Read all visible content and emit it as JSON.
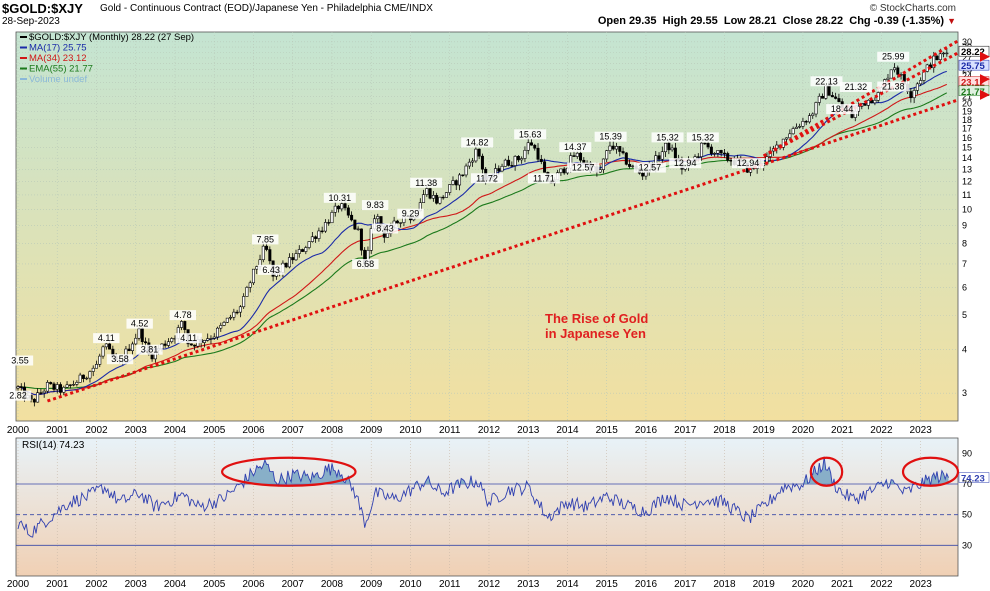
{
  "header": {
    "symbol": "$GOLD:$XJY",
    "description": "Gold - Continuous Contract (EOD)/Japanese Yen - Philadelphia  CME/INDX",
    "date": "28-Sep-2023",
    "credit": "© StockCharts.com",
    "quote": {
      "open_label": "Open",
      "open": "29.35",
      "high_label": "High",
      "high": "29.55",
      "low_label": "Low",
      "low": "28.21",
      "close_label": "Close",
      "close": "28.22",
      "chg_label": "Chg",
      "chg": "-0.39 (-1.35%)"
    }
  },
  "colors": {
    "price": "#000000",
    "ma17": "#1a2aa8",
    "ma34": "#d01818",
    "ema55": "#1c7a1c",
    "volume": "#8ab8d8",
    "rsi_line": "#3040b0",
    "rsi_fill": "#6fa0c0",
    "trendline": "#e01010",
    "annotation": "#e02020",
    "bg_top": "#c4e4d2",
    "bg_bottom": "#f2e0a0",
    "rsi_bg_top": "#e8f2f8",
    "rsi_bg_bottom": "#f0d0b4"
  },
  "chart_data": [
    {
      "type": "candlestick",
      "title": "The Rise of Gold in Japanese Yen",
      "scale": "log",
      "ylim": [
        2.5,
        32
      ],
      "xlim": [
        2000,
        2023.9
      ],
      "grid": true,
      "y_ticks": [
        3,
        4,
        5,
        6,
        7,
        8,
        9,
        10,
        11,
        12,
        13,
        14,
        15,
        16,
        17,
        18,
        19,
        20,
        21,
        22,
        23,
        24,
        25,
        26,
        27,
        28,
        29,
        30
      ],
      "x_ticks": [
        "2000",
        "2001",
        "2002",
        "2003",
        "2004",
        "2005",
        "2006",
        "2007",
        "2008",
        "2009",
        "2010",
        "2011",
        "2012",
        "2013",
        "2014",
        "2015",
        "2016",
        "2017",
        "2018",
        "2019",
        "2020",
        "2021",
        "2022",
        "2023"
      ],
      "legend": [
        {
          "label": "$GOLD:$XJY (Monthly) 28.22 (27 Sep)",
          "color": "#000000"
        },
        {
          "label": "MA(17) 25.75",
          "color": "#1a2aa8"
        },
        {
          "label": "MA(34) 23.12",
          "color": "#d01818"
        },
        {
          "label": "EMA(55) 21.77",
          "color": "#1c7a1c"
        },
        {
          "label": "Volume undef",
          "color": "#8ab8d8"
        }
      ],
      "legend_position": "top-left",
      "price_anchors": [
        {
          "t": 2000.0,
          "v": 3.1
        },
        {
          "t": 2000.35,
          "v": 2.82
        },
        {
          "t": 2000.75,
          "v": 3.15
        },
        {
          "t": 2001.15,
          "v": 3.05
        },
        {
          "t": 2001.6,
          "v": 3.3
        },
        {
          "t": 2002.0,
          "v": 3.6
        },
        {
          "t": 2002.2,
          "v": 4.11
        },
        {
          "t": 2002.55,
          "v": 3.58
        },
        {
          "t": 2003.1,
          "v": 4.52
        },
        {
          "t": 2003.35,
          "v": 3.81
        },
        {
          "t": 2004.0,
          "v": 4.4
        },
        {
          "t": 2004.2,
          "v": 4.78
        },
        {
          "t": 2004.35,
          "v": 4.11
        },
        {
          "t": 2005.0,
          "v": 4.4
        },
        {
          "t": 2005.7,
          "v": 5.3
        },
        {
          "t": 2006.3,
          "v": 7.85
        },
        {
          "t": 2006.5,
          "v": 6.43
        },
        {
          "t": 2007.2,
          "v": 7.6
        },
        {
          "t": 2007.8,
          "v": 9.0
        },
        {
          "t": 2008.2,
          "v": 10.31
        },
        {
          "t": 2008.7,
          "v": 8.5
        },
        {
          "t": 2008.85,
          "v": 6.68
        },
        {
          "t": 2009.1,
          "v": 9.83
        },
        {
          "t": 2009.35,
          "v": 8.43
        },
        {
          "t": 2009.9,
          "v": 9.8
        },
        {
          "t": 2010.0,
          "v": 9.29
        },
        {
          "t": 2010.4,
          "v": 11.38
        },
        {
          "t": 2010.7,
          "v": 10.5
        },
        {
          "t": 2011.3,
          "v": 12.5
        },
        {
          "t": 2011.7,
          "v": 14.82
        },
        {
          "t": 2011.95,
          "v": 11.72
        },
        {
          "t": 2012.3,
          "v": 13.4
        },
        {
          "t": 2012.8,
          "v": 14.0
        },
        {
          "t": 2013.05,
          "v": 15.63
        },
        {
          "t": 2013.25,
          "v": 14.3
        },
        {
          "t": 2013.5,
          "v": 11.71
        },
        {
          "t": 2013.9,
          "v": 13.0
        },
        {
          "t": 2014.2,
          "v": 14.37
        },
        {
          "t": 2014.8,
          "v": 12.57
        },
        {
          "t": 2015.1,
          "v": 15.39
        },
        {
          "t": 2015.6,
          "v": 13.3
        },
        {
          "t": 2015.9,
          "v": 12.57
        },
        {
          "t": 2016.3,
          "v": 14.0
        },
        {
          "t": 2016.55,
          "v": 15.32
        },
        {
          "t": 2016.95,
          "v": 12.94
        },
        {
          "t": 2017.3,
          "v": 14.2
        },
        {
          "t": 2017.45,
          "v": 15.32
        },
        {
          "t": 2017.9,
          "v": 14.2
        },
        {
          "t": 2018.35,
          "v": 13.6
        },
        {
          "t": 2018.65,
          "v": 12.94
        },
        {
          "t": 2019.1,
          "v": 14.0
        },
        {
          "t": 2019.7,
          "v": 16.8
        },
        {
          "t": 2020.2,
          "v": 18.5
        },
        {
          "t": 2020.6,
          "v": 22.13
        },
        {
          "t": 2021.0,
          "v": 19.5
        },
        {
          "t": 2021.25,
          "v": 18.44
        },
        {
          "t": 2021.5,
          "v": 20.0
        },
        {
          "t": 2021.95,
          "v": 21.32
        },
        {
          "t": 2022.3,
          "v": 25.99
        },
        {
          "t": 2022.55,
          "v": 23.2
        },
        {
          "t": 2022.75,
          "v": 21.38
        },
        {
          "t": 2023.3,
          "v": 26.5
        },
        {
          "t": 2023.73,
          "v": 28.22
        }
      ],
      "labels": [
        {
          "t": 2000.05,
          "v": 3.55,
          "text": "3.55"
        },
        {
          "t": 2000.0,
          "v": 2.82,
          "text": "2.82"
        },
        {
          "t": 2002.25,
          "v": 4.11,
          "text": "4.11"
        },
        {
          "t": 2002.6,
          "v": 3.58,
          "text": "3.58"
        },
        {
          "t": 2003.1,
          "v": 4.52,
          "text": "4.52"
        },
        {
          "t": 2003.35,
          "v": 3.81,
          "text": "3.81"
        },
        {
          "t": 2004.2,
          "v": 4.78,
          "text": "4.78"
        },
        {
          "t": 2004.35,
          "v": 4.11,
          "text": "4.11"
        },
        {
          "t": 2006.3,
          "v": 7.85,
          "text": "7.85"
        },
        {
          "t": 2006.45,
          "v": 6.43,
          "text": "6.43"
        },
        {
          "t": 2008.2,
          "v": 10.31,
          "text": "10.31"
        },
        {
          "t": 2009.1,
          "v": 9.83,
          "text": "9.83"
        },
        {
          "t": 2009.35,
          "v": 8.43,
          "text": "8.43"
        },
        {
          "t": 2008.85,
          "v": 6.68,
          "text": "6.68"
        },
        {
          "t": 2010.0,
          "v": 9.29,
          "text": "9.29"
        },
        {
          "t": 2010.4,
          "v": 11.38,
          "text": "11.38"
        },
        {
          "t": 2011.7,
          "v": 14.82,
          "text": "14.82"
        },
        {
          "t": 2011.95,
          "v": 11.72,
          "text": "11.72"
        },
        {
          "t": 2013.05,
          "v": 15.63,
          "text": "15.63"
        },
        {
          "t": 2013.4,
          "v": 11.71,
          "text": "11.71"
        },
        {
          "t": 2014.2,
          "v": 14.37,
          "text": "14.37"
        },
        {
          "t": 2014.4,
          "v": 12.57,
          "text": "12.57"
        },
        {
          "t": 2015.1,
          "v": 15.39,
          "text": "15.39"
        },
        {
          "t": 2016.1,
          "v": 12.57,
          "text": "12.57"
        },
        {
          "t": 2016.55,
          "v": 15.32,
          "text": "15.32"
        },
        {
          "t": 2017.0,
          "v": 12.94,
          "text": "12.94"
        },
        {
          "t": 2017.45,
          "v": 15.32,
          "text": "15.32"
        },
        {
          "t": 2018.6,
          "v": 12.94,
          "text": "12.94"
        },
        {
          "t": 2020.6,
          "v": 22.13,
          "text": "22.13"
        },
        {
          "t": 2021.35,
          "v": 21.32,
          "text": "21.32"
        },
        {
          "t": 2021.0,
          "v": 18.44,
          "text": "18.44"
        },
        {
          "t": 2022.3,
          "v": 25.99,
          "text": "25.99"
        },
        {
          "t": 2022.3,
          "v": 21.38,
          "text": "21.38"
        }
      ],
      "right_value_tags": [
        {
          "v": 28.22,
          "text": "28.22",
          "bg": "#ffffff",
          "fg": "#000000"
        },
        {
          "v": 25.75,
          "text": "25.75",
          "bg": "#d8e0ff",
          "fg": "#1a2aa8"
        },
        {
          "v": 23.12,
          "text": "23.12",
          "bg": "#ffe0e0",
          "fg": "#d01818"
        },
        {
          "v": 21.77,
          "text": "21.77",
          "bg": "#e0f0e0",
          "fg": "#1c7a1c"
        }
      ],
      "trendlines": [
        {
          "from": {
            "t": 2000.75,
            "v": 2.85
          },
          "to": {
            "t": 2023.95,
            "v": 20.5
          }
        },
        {
          "from": {
            "t": 2019.0,
            "v": 14.2
          },
          "to": {
            "t": 2023.95,
            "v": 30.2
          }
        },
        {
          "from": {
            "t": 2019.0,
            "v": 14.2
          },
          "to": {
            "t": 2023.95,
            "v": 27.9
          }
        }
      ]
    },
    {
      "type": "line",
      "title": "RSI(14) 74.23",
      "ylim": [
        10,
        100
      ],
      "y_ticks": [
        30,
        50,
        70,
        90
      ],
      "reference_lines": [
        30,
        50,
        70
      ],
      "current_value": "74.23",
      "x_ticks": [
        "2000",
        "2001",
        "2002",
        "2003",
        "2004",
        "2005",
        "2006",
        "2007",
        "2008",
        "2009",
        "2010",
        "2011",
        "2012",
        "2013",
        "2014",
        "2015",
        "2016",
        "2017",
        "2018",
        "2019",
        "2020",
        "2021",
        "2022",
        "2023"
      ],
      "rsi_anchors": [
        {
          "t": 2000.0,
          "v": 45
        },
        {
          "t": 2000.3,
          "v": 38
        },
        {
          "t": 2000.8,
          "v": 48
        },
        {
          "t": 2001.3,
          "v": 58
        },
        {
          "t": 2001.8,
          "v": 62
        },
        {
          "t": 2002.2,
          "v": 68
        },
        {
          "t": 2002.6,
          "v": 58
        },
        {
          "t": 2003.1,
          "v": 64
        },
        {
          "t": 2003.5,
          "v": 55
        },
        {
          "t": 2004.2,
          "v": 63
        },
        {
          "t": 2004.6,
          "v": 55
        },
        {
          "t": 2005.2,
          "v": 60
        },
        {
          "t": 2005.6,
          "v": 68
        },
        {
          "t": 2006.0,
          "v": 78
        },
        {
          "t": 2006.3,
          "v": 83
        },
        {
          "t": 2006.6,
          "v": 72
        },
        {
          "t": 2007.0,
          "v": 76
        },
        {
          "t": 2007.5,
          "v": 74
        },
        {
          "t": 2007.9,
          "v": 80
        },
        {
          "t": 2008.2,
          "v": 79
        },
        {
          "t": 2008.6,
          "v": 64
        },
        {
          "t": 2008.85,
          "v": 44
        },
        {
          "t": 2009.1,
          "v": 64
        },
        {
          "t": 2009.6,
          "v": 60
        },
        {
          "t": 2010.0,
          "v": 66
        },
        {
          "t": 2010.4,
          "v": 72
        },
        {
          "t": 2010.8,
          "v": 64
        },
        {
          "t": 2011.3,
          "v": 70
        },
        {
          "t": 2011.7,
          "v": 72
        },
        {
          "t": 2012.0,
          "v": 58
        },
        {
          "t": 2012.5,
          "v": 66
        },
        {
          "t": 2013.0,
          "v": 68
        },
        {
          "t": 2013.5,
          "v": 48
        },
        {
          "t": 2014.0,
          "v": 58
        },
        {
          "t": 2014.5,
          "v": 55
        },
        {
          "t": 2015.0,
          "v": 62
        },
        {
          "t": 2015.5,
          "v": 56
        },
        {
          "t": 2016.0,
          "v": 52
        },
        {
          "t": 2016.5,
          "v": 62
        },
        {
          "t": 2017.0,
          "v": 56
        },
        {
          "t": 2017.5,
          "v": 60
        },
        {
          "t": 2018.0,
          "v": 58
        },
        {
          "t": 2018.6,
          "v": 47
        },
        {
          "t": 2019.0,
          "v": 55
        },
        {
          "t": 2019.5,
          "v": 68
        },
        {
          "t": 2020.0,
          "v": 70
        },
        {
          "t": 2020.55,
          "v": 84
        },
        {
          "t": 2020.8,
          "v": 70
        },
        {
          "t": 2021.0,
          "v": 64
        },
        {
          "t": 2021.3,
          "v": 60
        },
        {
          "t": 2021.8,
          "v": 66
        },
        {
          "t": 2022.2,
          "v": 72
        },
        {
          "t": 2022.6,
          "v": 64
        },
        {
          "t": 2023.0,
          "v": 70
        },
        {
          "t": 2023.4,
          "v": 75
        },
        {
          "t": 2023.73,
          "v": 74.23
        }
      ]
    }
  ]
}
